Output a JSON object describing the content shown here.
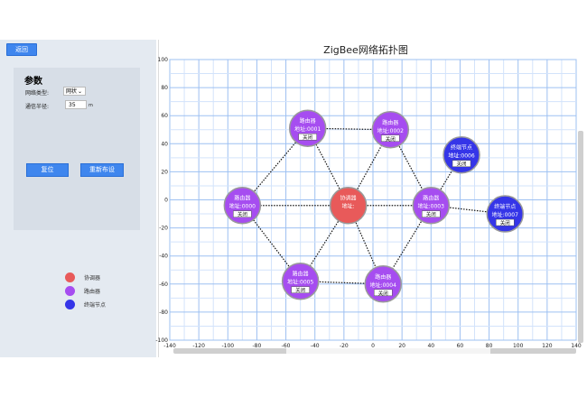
{
  "back_button": "返回",
  "params": {
    "title": "参数",
    "network_type_label": "网络类型:",
    "network_type_value": "网状",
    "radius_label": "通信半径:",
    "radius_value": "35",
    "radius_unit": "m",
    "reset_label": "复位",
    "redeploy_label": "重新布设"
  },
  "legend": [
    {
      "label": "协调器",
      "color": "#e85a5a"
    },
    {
      "label": "路由器",
      "color": "#a64df0"
    },
    {
      "label": "终端节点",
      "color": "#3535e8"
    }
  ],
  "chart": {
    "title": "ZigBee网络拓扑图",
    "xlim": [
      -140,
      140
    ],
    "ylim": [
      -100,
      100
    ],
    "xticks": [
      -140,
      -120,
      -100,
      -80,
      -60,
      -40,
      -20,
      0,
      20,
      40,
      60,
      80,
      100,
      120,
      140
    ],
    "yticks": [
      100,
      80,
      60,
      40,
      20,
      0,
      -20,
      -40,
      -60,
      -80,
      -100
    ],
    "grid": true
  },
  "nodes": [
    {
      "id": "c",
      "type": "coordinator",
      "name": "协调器",
      "addr": "地址:",
      "x": -17,
      "y": -4,
      "color": "#e85a5a"
    },
    {
      "id": "r0",
      "type": "router",
      "name": "路由器",
      "addr": "地址:0000",
      "button": "关闭",
      "x": -90,
      "y": -4,
      "color": "#a64df0"
    },
    {
      "id": "r1",
      "type": "router",
      "name": "路由器",
      "addr": "地址:0001",
      "button": "关闭",
      "x": -45,
      "y": 51,
      "color": "#a64df0"
    },
    {
      "id": "r2",
      "type": "router",
      "name": "路由器",
      "addr": "地址:0002",
      "button": "关闭",
      "x": 12,
      "y": 50,
      "color": "#a64df0"
    },
    {
      "id": "r3",
      "type": "router",
      "name": "路由器",
      "addr": "地址:0003",
      "button": "关闭",
      "x": 40,
      "y": -4,
      "color": "#a64df0"
    },
    {
      "id": "r4",
      "type": "router",
      "name": "路由器",
      "addr": "地址:0004",
      "button": "关闭",
      "x": 7,
      "y": -60,
      "color": "#a64df0"
    },
    {
      "id": "r5",
      "type": "router",
      "name": "路由器",
      "addr": "地址:0005",
      "button": "关闭",
      "x": -50,
      "y": -58,
      "color": "#a64df0"
    },
    {
      "id": "e6",
      "type": "end",
      "name": "终端节点",
      "addr": "地址:0006",
      "button": "关闭",
      "x": 61,
      "y": 32,
      "color": "#3535e8"
    },
    {
      "id": "e7",
      "type": "end",
      "name": "终端节点",
      "addr": "地址:0007",
      "button": "关闭",
      "x": 91,
      "y": -10,
      "color": "#3535e8"
    }
  ],
  "links": [
    [
      "c",
      "r0"
    ],
    [
      "c",
      "r1"
    ],
    [
      "c",
      "r2"
    ],
    [
      "c",
      "r3"
    ],
    [
      "c",
      "r4"
    ],
    [
      "c",
      "r5"
    ],
    [
      "r0",
      "r1"
    ],
    [
      "r1",
      "r2"
    ],
    [
      "r2",
      "r3"
    ],
    [
      "r3",
      "r4"
    ],
    [
      "r4",
      "r5"
    ],
    [
      "r5",
      "r0"
    ],
    [
      "r3",
      "e6"
    ],
    [
      "r3",
      "e7"
    ]
  ]
}
